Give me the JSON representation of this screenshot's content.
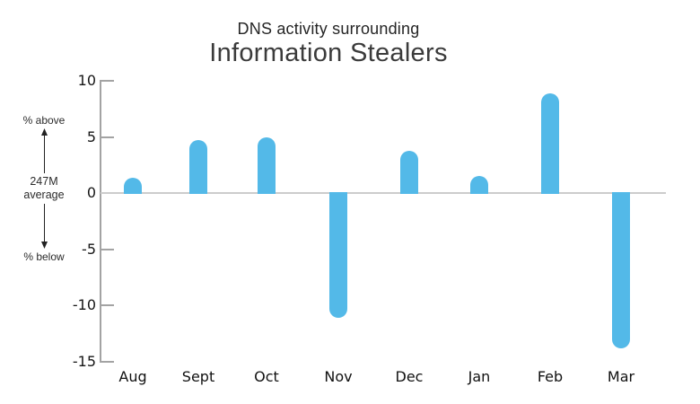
{
  "title": {
    "line1": "DNS activity surrounding",
    "line2": "Information Stealers"
  },
  "left_annotation": {
    "above": "% above",
    "average_line1": "247M",
    "average_line2": "average",
    "below": "% below"
  },
  "chart_data": {
    "type": "bar",
    "title": "DNS activity surrounding Information Stealers",
    "categories": [
      "Aug",
      "Sept",
      "Oct",
      "Nov",
      "Dec",
      "Jan",
      "Feb",
      "Mar"
    ],
    "values": [
      1.4,
      4.7,
      5.0,
      -11.1,
      3.8,
      1.5,
      8.9,
      -13.8
    ],
    "y_ticks": [
      10,
      5,
      0,
      -5,
      -10,
      -15
    ],
    "y_tick_labels": [
      "10",
      "5",
      "0",
      "-5",
      "-10",
      "-15"
    ],
    "ylim": [
      -15,
      10
    ],
    "annotations": [
      "% above",
      "247M average",
      "% below"
    ],
    "bar_color": "#53B9E8",
    "zero_line_color": "#cccccc",
    "axis_color": "#a3a3a3",
    "text_color": "#161616",
    "grid": false,
    "legend": false
  }
}
